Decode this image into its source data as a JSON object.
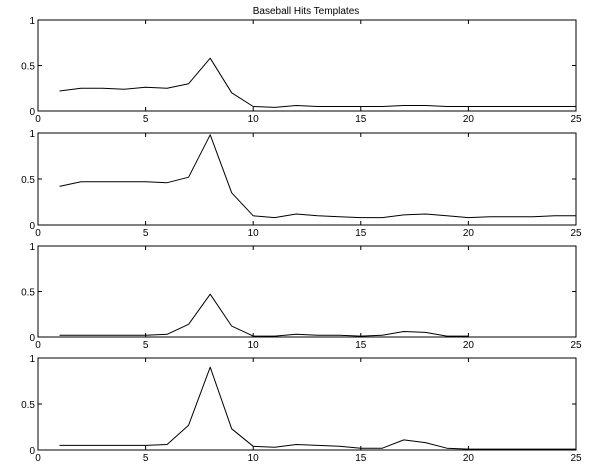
{
  "chart_data": [
    {
      "type": "line",
      "title": "Baseball Hits Templates",
      "xlim": [
        0,
        25
      ],
      "ylim": [
        0,
        1
      ],
      "xticks": [
        0,
        5,
        10,
        15,
        20,
        25
      ],
      "yticks": [
        0,
        0.5,
        1
      ],
      "xtick_labels": [
        "0",
        "5",
        "10",
        "15",
        "20",
        "25"
      ],
      "ytick_labels": [
        "0",
        "0.5",
        "1"
      ],
      "grid": false,
      "series": [
        {
          "x": [
            1,
            2,
            3,
            4,
            5,
            6,
            7,
            8,
            9,
            10,
            11,
            12,
            13,
            14,
            15,
            16,
            17,
            18,
            19,
            20,
            21,
            22,
            23,
            24,
            25
          ],
          "y": [
            0.22,
            0.25,
            0.25,
            0.24,
            0.26,
            0.25,
            0.3,
            0.58,
            0.2,
            0.05,
            0.04,
            0.06,
            0.05,
            0.05,
            0.05,
            0.05,
            0.06,
            0.06,
            0.05,
            0.05,
            0.05,
            0.05,
            0.05,
            0.05,
            0.05
          ]
        }
      ]
    },
    {
      "type": "line",
      "title": "",
      "xlim": [
        0,
        25
      ],
      "ylim": [
        0,
        1
      ],
      "xticks": [
        0,
        5,
        10,
        15,
        20,
        25
      ],
      "yticks": [
        0,
        0.5,
        1
      ],
      "xtick_labels": [
        "0",
        "5",
        "10",
        "15",
        "20",
        "25"
      ],
      "ytick_labels": [
        "0",
        "0.5",
        "1"
      ],
      "grid": false,
      "series": [
        {
          "x": [
            1,
            2,
            3,
            4,
            5,
            6,
            7,
            8,
            9,
            10,
            11,
            12,
            13,
            14,
            15,
            16,
            17,
            18,
            19,
            20,
            21,
            22,
            23,
            24,
            25
          ],
          "y": [
            0.42,
            0.47,
            0.47,
            0.47,
            0.47,
            0.46,
            0.52,
            0.98,
            0.35,
            0.1,
            0.08,
            0.12,
            0.1,
            0.09,
            0.08,
            0.08,
            0.11,
            0.12,
            0.1,
            0.08,
            0.09,
            0.09,
            0.09,
            0.1,
            0.1
          ]
        }
      ]
    },
    {
      "type": "line",
      "title": "",
      "xlim": [
        0,
        25
      ],
      "ylim": [
        0,
        1
      ],
      "xticks": [
        0,
        5,
        10,
        15,
        20,
        25
      ],
      "yticks": [
        0,
        0.5,
        1
      ],
      "xtick_labels": [
        "0",
        "5",
        "10",
        "15",
        "20",
        "25"
      ],
      "ytick_labels": [
        "0",
        "0.5",
        "1"
      ],
      "grid": false,
      "series": [
        {
          "x": [
            1,
            2,
            3,
            4,
            5,
            6,
            7,
            8,
            9,
            10,
            11,
            12,
            13,
            14,
            15,
            16,
            17,
            18,
            19,
            20
          ],
          "y": [
            0.02,
            0.02,
            0.02,
            0.02,
            0.02,
            0.03,
            0.14,
            0.47,
            0.12,
            0.01,
            0.01,
            0.03,
            0.02,
            0.02,
            0.01,
            0.02,
            0.06,
            0.05,
            0.01,
            0.01
          ]
        }
      ]
    },
    {
      "type": "line",
      "title": "",
      "xlim": [
        0,
        25
      ],
      "ylim": [
        0,
        1
      ],
      "xticks": [
        0,
        5,
        10,
        15,
        20,
        25
      ],
      "yticks": [
        0,
        0.5,
        1
      ],
      "xtick_labels": [
        "0",
        "5",
        "10",
        "15",
        "20",
        "25"
      ],
      "ytick_labels": [
        "0",
        "0.5",
        "1"
      ],
      "grid": false,
      "series": [
        {
          "x": [
            1,
            2,
            3,
            4,
            5,
            6,
            7,
            8,
            9,
            10,
            11,
            12,
            13,
            14,
            15,
            16,
            17,
            18,
            19,
            20,
            21,
            22,
            23,
            24,
            25
          ],
          "y": [
            0.05,
            0.05,
            0.05,
            0.05,
            0.05,
            0.06,
            0.27,
            0.9,
            0.23,
            0.04,
            0.03,
            0.06,
            0.05,
            0.04,
            0.02,
            0.02,
            0.11,
            0.08,
            0.02,
            0.01,
            0.01,
            0.01,
            0.01,
            0.01,
            0.01
          ]
        }
      ]
    }
  ]
}
